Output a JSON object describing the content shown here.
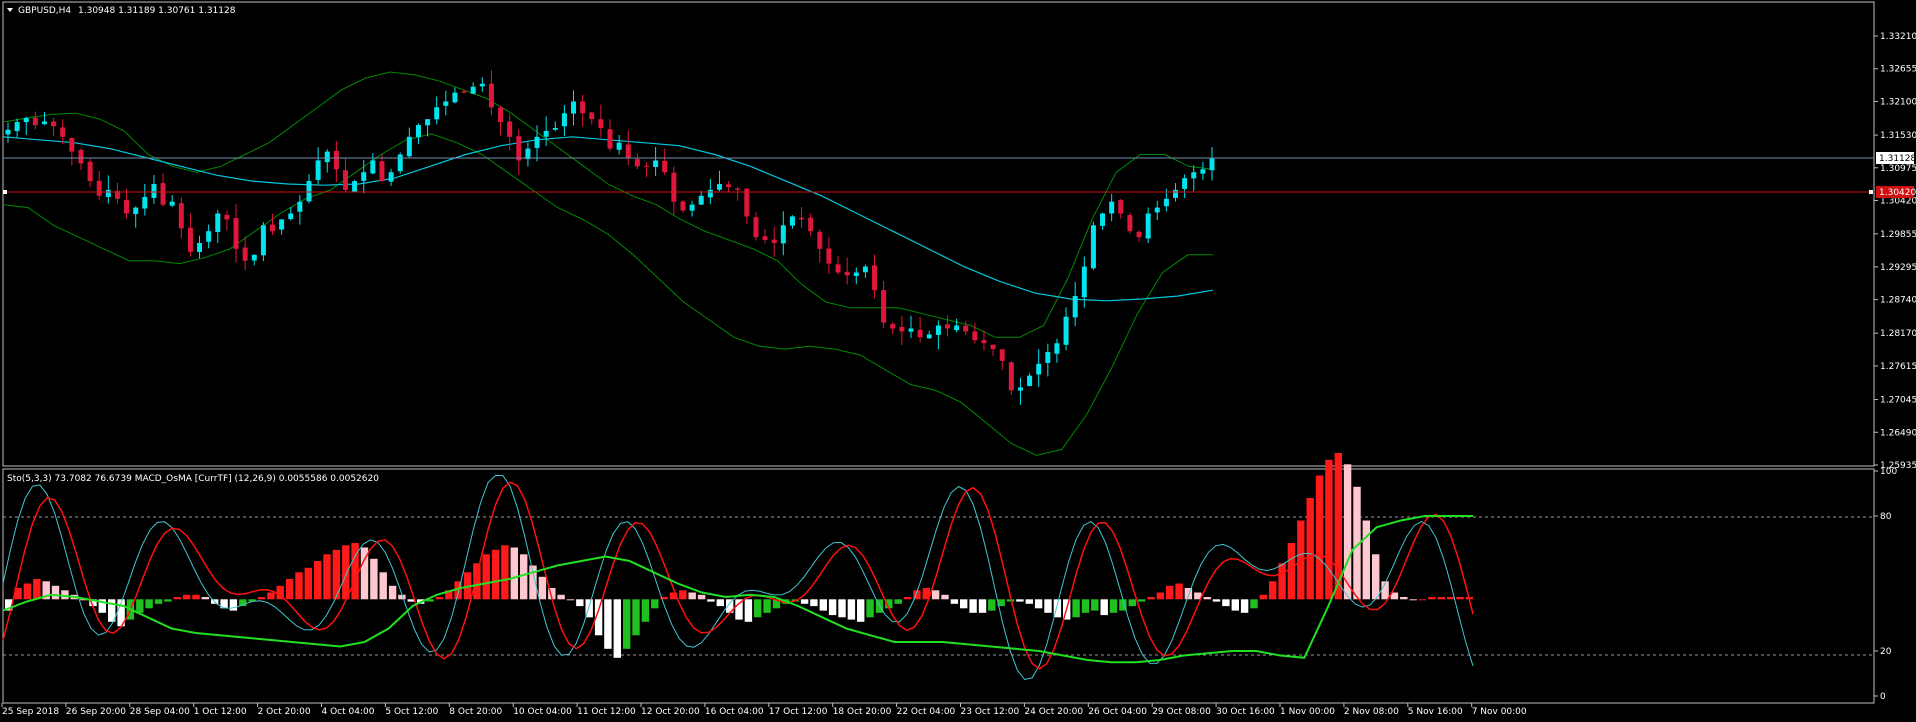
{
  "symbol_header": {
    "symbol": "GBPUSD,H4",
    "ohlc": "1.30948 1.31189 1.30761 1.31128"
  },
  "indicator_header": {
    "text": "Sto(5,3,3) 73.7082 76.6739  MACD_OsMA [CurrTF] (12,26,9) 0.0055586 0.0052620"
  },
  "price_axis": {
    "ticks": [
      "1.33210",
      "1.32655",
      "1.32100",
      "1.31530",
      "1.30975",
      "1.30420",
      "1.29855",
      "1.29295",
      "1.28740",
      "1.28170",
      "1.27615",
      "1.27045",
      "1.26490",
      "1.25935"
    ],
    "current_bid_label": "1.31128",
    "red_line_label": "1.30420"
  },
  "indicator_axis": {
    "ticks": [
      "100",
      "80",
      "20",
      "0"
    ]
  },
  "time_axis": {
    "labels": [
      "25 Sep 2018",
      "26 Sep 20:00",
      "28 Sep 04:00",
      "1 Oct 12:00",
      "2 Oct 20:00",
      "4 Oct 04:00",
      "5 Oct 12:00",
      "8 Oct 20:00",
      "10 Oct 04:00",
      "11 Oct 12:00",
      "12 Oct 20:00",
      "16 Oct 04:00",
      "17 Oct 12:00",
      "18 Oct 20:00",
      "22 Oct 04:00",
      "23 Oct 12:00",
      "24 Oct 20:00",
      "26 Oct 04:00",
      "29 Oct 08:00",
      "30 Oct 16:00",
      "1 Nov 00:00",
      "2 Nov 08:00",
      "5 Nov 16:00",
      "7 Nov 00:00"
    ]
  },
  "colors": {
    "bull": "#00e5ee",
    "bear": "#e0173c",
    "bollinger": "#008a00",
    "moving_average": "#00c8e0",
    "stoch_main": "#40c8d0",
    "stoch_signal": "#ff1010",
    "macd_line": "#20e020",
    "osma_positive": "#ff1a1a",
    "osma_positive_falling": "#ffc8d0",
    "osma_negative": "#ffffff",
    "osma_negative_rising": "#20c020",
    "text": "#ffffff"
  },
  "chart_data": {
    "type": "candlestick",
    "symbol": "GBPUSD",
    "timeframe": "H4",
    "ylim": [
      1.2593,
      1.3349
    ],
    "last": {
      "open": 1.30948,
      "high": 1.31189,
      "low": 1.30761,
      "close": 1.31128
    },
    "horizontal_lines": [
      1.31128,
      1.3042
    ],
    "close_series": [
      1.3162,
      1.3175,
      1.3182,
      1.317,
      1.3176,
      1.3168,
      1.315,
      1.3125,
      1.3105,
      1.3075,
      1.305,
      1.306,
      1.3045,
      1.302,
      1.303,
      1.3048,
      1.307,
      1.3035,
      1.304,
      1.2995,
      1.2955,
      1.297,
      1.299,
      1.302,
      1.301,
      1.296,
      1.294,
      1.295,
      1.3,
      1.299,
      1.301,
      1.302,
      1.304,
      1.3075,
      1.311,
      1.3125,
      1.3095,
      1.306,
      1.3075,
      1.309,
      1.311,
      1.3075,
      1.309,
      1.312,
      1.315,
      1.317,
      1.318,
      1.32,
      1.321,
      1.3225,
      1.3225,
      1.3235,
      1.324,
      1.32,
      1.3175,
      1.315,
      1.311,
      1.313,
      1.315,
      1.316,
      1.3165,
      1.319,
      1.321,
      1.319,
      1.318,
      1.3165,
      1.313,
      1.314,
      1.3115,
      1.31,
      1.31,
      1.311,
      1.309,
      1.304,
      1.3025,
      1.3035,
      1.305,
      1.306,
      1.307,
      1.3065,
      1.306,
      1.3015,
      1.298,
      1.2975,
      1.297,
      1.3,
      1.3015,
      1.301,
      1.299,
      1.296,
      1.2935,
      1.292,
      1.2915,
      1.292,
      1.293,
      1.289,
      1.2835,
      1.2825,
      1.282,
      1.2825,
      1.281,
      1.2815,
      1.283,
      1.2825,
      1.283,
      1.282,
      1.2805,
      1.28,
      1.279,
      1.277,
      1.272,
      1.2725,
      1.2745,
      1.2765,
      1.2785,
      1.28,
      1.2845,
      1.288,
      1.293,
      1.3,
      1.302,
      1.304,
      1.302,
      1.299,
      1.298,
      1.302,
      1.303,
      1.3045,
      1.306,
      1.308,
      1.309,
      1.3095,
      1.3113
    ],
    "bollinger_upper": [
      1.3175,
      1.3182,
      1.3188,
      1.319,
      1.318,
      1.316,
      1.312,
      1.31,
      1.309,
      1.31,
      1.312,
      1.314,
      1.317,
      1.32,
      1.323,
      1.325,
      1.326,
      1.3255,
      1.3245,
      1.323,
      1.3215,
      1.319,
      1.316,
      1.313,
      1.31,
      1.307,
      1.305,
      1.3035,
      1.301,
      1.299,
      1.2975,
      1.296,
      1.294,
      1.29,
      1.287,
      1.286,
      1.286,
      1.286,
      1.285,
      1.284,
      1.283,
      1.281,
      1.281,
      1.283,
      1.291,
      1.301,
      1.309,
      1.312,
      1.312,
      1.31,
      1.3095
    ],
    "bollinger_lower": [
      1.3035,
      1.303,
      1.3,
      1.298,
      1.296,
      1.294,
      1.294,
      1.2935,
      1.2945,
      1.296,
      1.299,
      1.302,
      1.3045,
      1.306,
      1.309,
      1.312,
      1.3145,
      1.3155,
      1.314,
      1.312,
      1.309,
      1.306,
      1.303,
      1.301,
      1.2985,
      1.295,
      1.291,
      1.287,
      1.284,
      1.281,
      1.2795,
      1.279,
      1.2795,
      1.279,
      1.278,
      1.2755,
      1.273,
      1.272,
      1.27,
      1.2665,
      1.263,
      1.261,
      1.262,
      1.268,
      1.276,
      1.285,
      1.292,
      1.295,
      1.295
    ],
    "moving_average": [
      1.315,
      1.3145,
      1.314,
      1.313,
      1.3115,
      1.31,
      1.3085,
      1.3075,
      1.307,
      1.3068,
      1.307,
      1.308,
      1.31,
      1.312,
      1.3135,
      1.3145,
      1.315,
      1.3145,
      1.314,
      1.3135,
      1.312,
      1.31,
      1.3075,
      1.305,
      1.302,
      1.299,
      1.296,
      1.293,
      1.2905,
      1.2885,
      1.2875,
      1.2872,
      1.2875,
      1.288,
      1.289
    ],
    "stochastic": {
      "main_last": 73.7082,
      "signal_last": 76.6739,
      "levels": [
        80,
        20
      ]
    },
    "macd_osma": {
      "params": "12,26,9",
      "osma_last": 0.0055586,
      "signal_last": 0.005262
    }
  }
}
